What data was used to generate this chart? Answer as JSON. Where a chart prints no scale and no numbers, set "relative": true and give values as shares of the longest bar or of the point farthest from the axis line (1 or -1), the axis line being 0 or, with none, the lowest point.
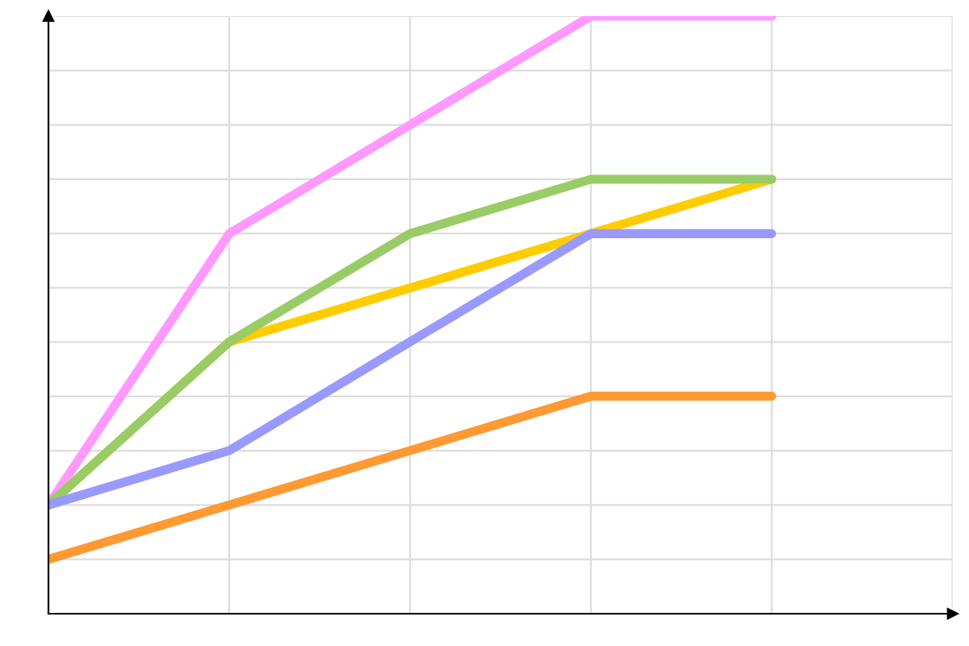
{
  "chart_data": {
    "type": "line",
    "relative": true,
    "grid": true,
    "legend": false,
    "marker": "none",
    "line_style": "solid",
    "categories": [
      null,
      null,
      null,
      null,
      null,
      null
    ],
    "series": [
      {
        "color": "#ff99ff",
        "values": [
          0.182,
          0.636,
          0.818,
          1,
          1,
          null
        ]
      },
      {
        "color": "#ffcc00",
        "values": [
          0.182,
          0.455,
          0.545,
          0.636,
          0.727,
          null
        ]
      },
      {
        "color": "#99cc66",
        "values": [
          0.182,
          0.455,
          0.636,
          0.727,
          0.727,
          null
        ]
      },
      {
        "color": "#9999ff",
        "values": [
          0.182,
          0.273,
          0.455,
          0.636,
          0.636,
          null
        ]
      },
      {
        "color": "#ff9933",
        "values": [
          0.091,
          0.182,
          0.273,
          0.364,
          0.364,
          null
        ]
      }
    ]
  }
}
